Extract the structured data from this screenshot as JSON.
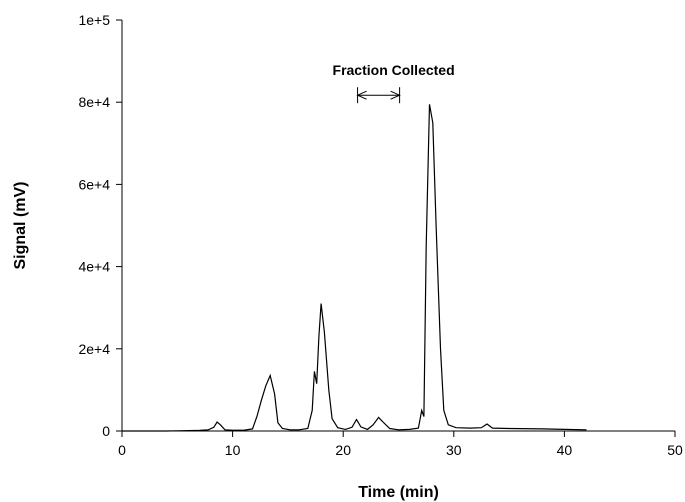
{
  "chart_data": {
    "type": "line",
    "xlabel": "Time (min)",
    "ylabel": "Signal (mV)",
    "xlim": [
      0,
      50
    ],
    "ylim": [
      0,
      100000
    ],
    "x_ticks": [
      0,
      10,
      20,
      30,
      40,
      50
    ],
    "x_tick_labels": [
      "0",
      "10",
      "20",
      "30",
      "40",
      "50"
    ],
    "y_ticks": [
      0,
      20000,
      40000,
      60000,
      80000,
      100000
    ],
    "y_tick_labels": [
      "0",
      "2e+4",
      "4e+4",
      "6e+4",
      "8e+4",
      "1e+5"
    ],
    "grid": false,
    "line_color": "#000000",
    "annotation": {
      "text": "Fraction Collected",
      "x_start": 21.3,
      "x_end": 25.1,
      "y": 80000
    },
    "series": [
      {
        "points": [
          [
            0,
            0
          ],
          [
            2,
            0
          ],
          [
            4,
            0
          ],
          [
            5,
            50
          ],
          [
            6,
            100
          ],
          [
            7,
            150
          ],
          [
            7.8,
            300
          ],
          [
            8.3,
            900
          ],
          [
            8.6,
            2200
          ],
          [
            8.9,
            1500
          ],
          [
            9.3,
            300
          ],
          [
            10,
            200
          ],
          [
            11,
            200
          ],
          [
            11.8,
            500
          ],
          [
            12.2,
            3500
          ],
          [
            12.6,
            7500
          ],
          [
            13.0,
            11000
          ],
          [
            13.4,
            13500
          ],
          [
            13.8,
            9000
          ],
          [
            14.1,
            2000
          ],
          [
            14.5,
            600
          ],
          [
            15.2,
            300
          ],
          [
            16,
            300
          ],
          [
            16.8,
            600
          ],
          [
            17.2,
            5000
          ],
          [
            17.4,
            14500
          ],
          [
            17.6,
            11500
          ],
          [
            17.8,
            23000
          ],
          [
            18.0,
            31000
          ],
          [
            18.3,
            24000
          ],
          [
            18.7,
            10000
          ],
          [
            19.0,
            3000
          ],
          [
            19.5,
            800
          ],
          [
            20.2,
            400
          ],
          [
            20.8,
            900
          ],
          [
            21.2,
            2800
          ],
          [
            21.6,
            1000
          ],
          [
            22.2,
            400
          ],
          [
            22.7,
            1500
          ],
          [
            23.2,
            3300
          ],
          [
            23.6,
            2200
          ],
          [
            24.2,
            600
          ],
          [
            25.0,
            300
          ],
          [
            26.0,
            400
          ],
          [
            26.8,
            700
          ],
          [
            27.1,
            5000
          ],
          [
            27.3,
            3500
          ],
          [
            27.5,
            45000
          ],
          [
            27.8,
            79500
          ],
          [
            28.1,
            75000
          ],
          [
            28.4,
            50000
          ],
          [
            28.8,
            20000
          ],
          [
            29.1,
            5000
          ],
          [
            29.5,
            1500
          ],
          [
            30.2,
            800
          ],
          [
            31.5,
            700
          ],
          [
            32.5,
            800
          ],
          [
            33.0,
            1700
          ],
          [
            33.5,
            700
          ],
          [
            35,
            600
          ],
          [
            38,
            500
          ],
          [
            40,
            400
          ],
          [
            42,
            300
          ]
        ]
      }
    ]
  }
}
